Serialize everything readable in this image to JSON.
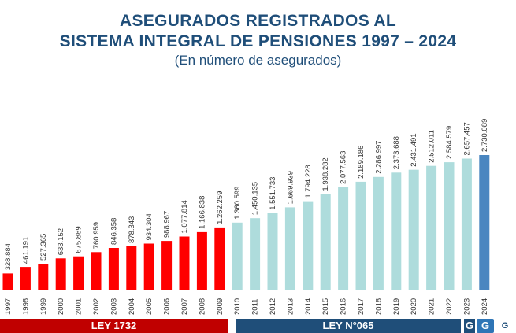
{
  "header": {
    "title_line1": "ASEGURADOS REGISTRADOS AL",
    "title_line2": "SISTEMA INTEGRAL DE PENSIONES 1997 – 2024",
    "subtitle": "(En número de asegurados)"
  },
  "laws": {
    "law1_label": "LEY 1732",
    "law2_label": "LEY N°065"
  },
  "colors": {
    "law1_bar": "#ff0000",
    "law2_bar": "#aedcdc",
    "last_bar": "#4a86c0",
    "title": "#1f4e79",
    "law1_band": "#c00000",
    "law2_band": "#1f4e79"
  },
  "logos": [
    "G",
    "G",
    "G"
  ],
  "chart_data": {
    "type": "bar",
    "title": "ASEGURADOS REGISTRADOS AL SISTEMA INTEGRAL DE PENSIONES 1997 – 2024",
    "subtitle": "(En número de asegurados)",
    "categories": [
      "1997",
      "1998",
      "1999",
      "2000",
      "2001",
      "2002",
      "2003",
      "2004",
      "2005",
      "2006",
      "2007",
      "2008",
      "2009",
      "2010",
      "2011",
      "2012",
      "2013",
      "2014",
      "2015",
      "2016",
      "2017",
      "2018",
      "2019",
      "2020",
      "2021",
      "2022",
      "2023",
      "2024"
    ],
    "values": [
      328884,
      461191,
      527365,
      633152,
      675889,
      760959,
      846358,
      878343,
      934304,
      988967,
      1077814,
      1166838,
      1262259,
      1360599,
      1450135,
      1551733,
      1669939,
      1794228,
      1938282,
      2077563,
      2189186,
      2286997,
      2373688,
      2431491,
      2512011,
      2584579,
      2657457,
      2730089
    ],
    "labels": [
      "328.884",
      "461.191",
      "527.365",
      "633.152",
      "675.889",
      "760.959",
      "846.358",
      "878.343",
      "934.304",
      "988.967",
      "1.077.814",
      "1.166.838",
      "1.262.259",
      "1.360.599",
      "1.450.135",
      "1.551.733",
      "1.669.939",
      "1.794.228",
      "1.938.282",
      "2.077.563",
      "2.189.186",
      "2.286.997",
      "2.373.688",
      "2.431.491",
      "2.512.011",
      "2.584.579",
      "2.657.457",
      "2.730.089"
    ],
    "groups": [
      {
        "name": "LEY 1732",
        "from": "1997",
        "to": "2009"
      },
      {
        "name": "LEY N°065",
        "from": "2010",
        "to": "2024"
      }
    ],
    "ylim": [
      0,
      2730089
    ],
    "grid": false,
    "legend": "none"
  }
}
